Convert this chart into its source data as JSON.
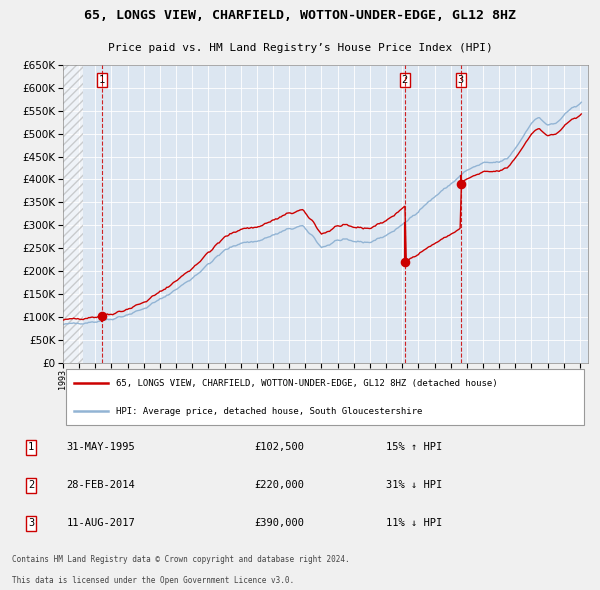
{
  "title": "65, LONGS VIEW, CHARFIELD, WOTTON-UNDER-EDGE, GL12 8HZ",
  "subtitle": "Price paid vs. HM Land Registry’s House Price Index (HPI)",
  "background_color": "#f0f0f0",
  "plot_bg_color": "#dce6f1",
  "grid_color": "#ffffff",
  "hpi_color": "#92b4d4",
  "price_color": "#cc0000",
  "sale_marker_color": "#cc0000",
  "sale1_date_num": 1995.41,
  "sale1_price": 102500,
  "sale2_date_num": 2014.16,
  "sale2_price": 220000,
  "sale3_date_num": 2017.61,
  "sale3_price": 390000,
  "ylim_min": 0,
  "ylim_max": 650000,
  "ytick_step": 50000,
  "legend_line1": "65, LONGS VIEW, CHARFIELD, WOTTON-UNDER-EDGE, GL12 8HZ (detached house)",
  "legend_line2": "HPI: Average price, detached house, South Gloucestershire",
  "table_rows": [
    {
      "num": "1",
      "date": "31-MAY-1995",
      "price": "£102,500",
      "hpi": "15% ↑ HPI"
    },
    {
      "num": "2",
      "date": "28-FEB-2014",
      "price": "£220,000",
      "hpi": "31% ↓ HPI"
    },
    {
      "num": "3",
      "date": "11-AUG-2017",
      "price": "£390,000",
      "hpi": "11% ↓ HPI"
    }
  ],
  "footnote1": "Contains HM Land Registry data © Crown copyright and database right 2024.",
  "footnote2": "This data is licensed under the Open Government Licence v3.0."
}
